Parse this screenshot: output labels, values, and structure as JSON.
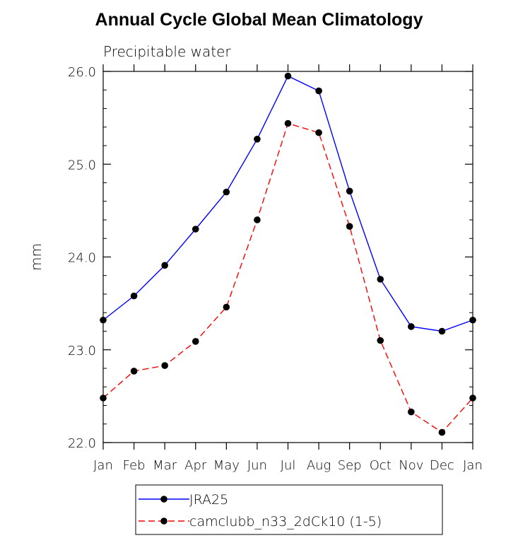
{
  "chart_data": {
    "type": "line",
    "title": "Annual Cycle Global Mean Climatology",
    "subtitle": "Precipitable water",
    "xlabel": "",
    "ylabel": "mm",
    "categories": [
      "Jan",
      "Feb",
      "Mar",
      "Apr",
      "May",
      "Jun",
      "Jul",
      "Aug",
      "Sep",
      "Oct",
      "Nov",
      "Dec",
      "Jan"
    ],
    "ylim": [
      22.0,
      26.0
    ],
    "yticks": [
      "22.0",
      "23.0",
      "24.0",
      "25.0",
      "26.0"
    ],
    "grid": false,
    "legend_placement": "bottom",
    "series": [
      {
        "name": "JRA25",
        "color": "#0000ff",
        "dash": "solid",
        "values": [
          23.32,
          23.58,
          23.91,
          24.3,
          24.7,
          25.27,
          25.95,
          25.79,
          24.71,
          23.76,
          23.25,
          23.2,
          23.32
        ]
      },
      {
        "name": "camclubb_n33_2dCk10 (1-5)",
        "color": "#ff0000",
        "dash": "dashed",
        "values": [
          22.48,
          22.77,
          22.83,
          23.09,
          23.46,
          24.4,
          25.44,
          25.34,
          24.33,
          23.1,
          22.33,
          22.11,
          22.48
        ]
      }
    ]
  }
}
